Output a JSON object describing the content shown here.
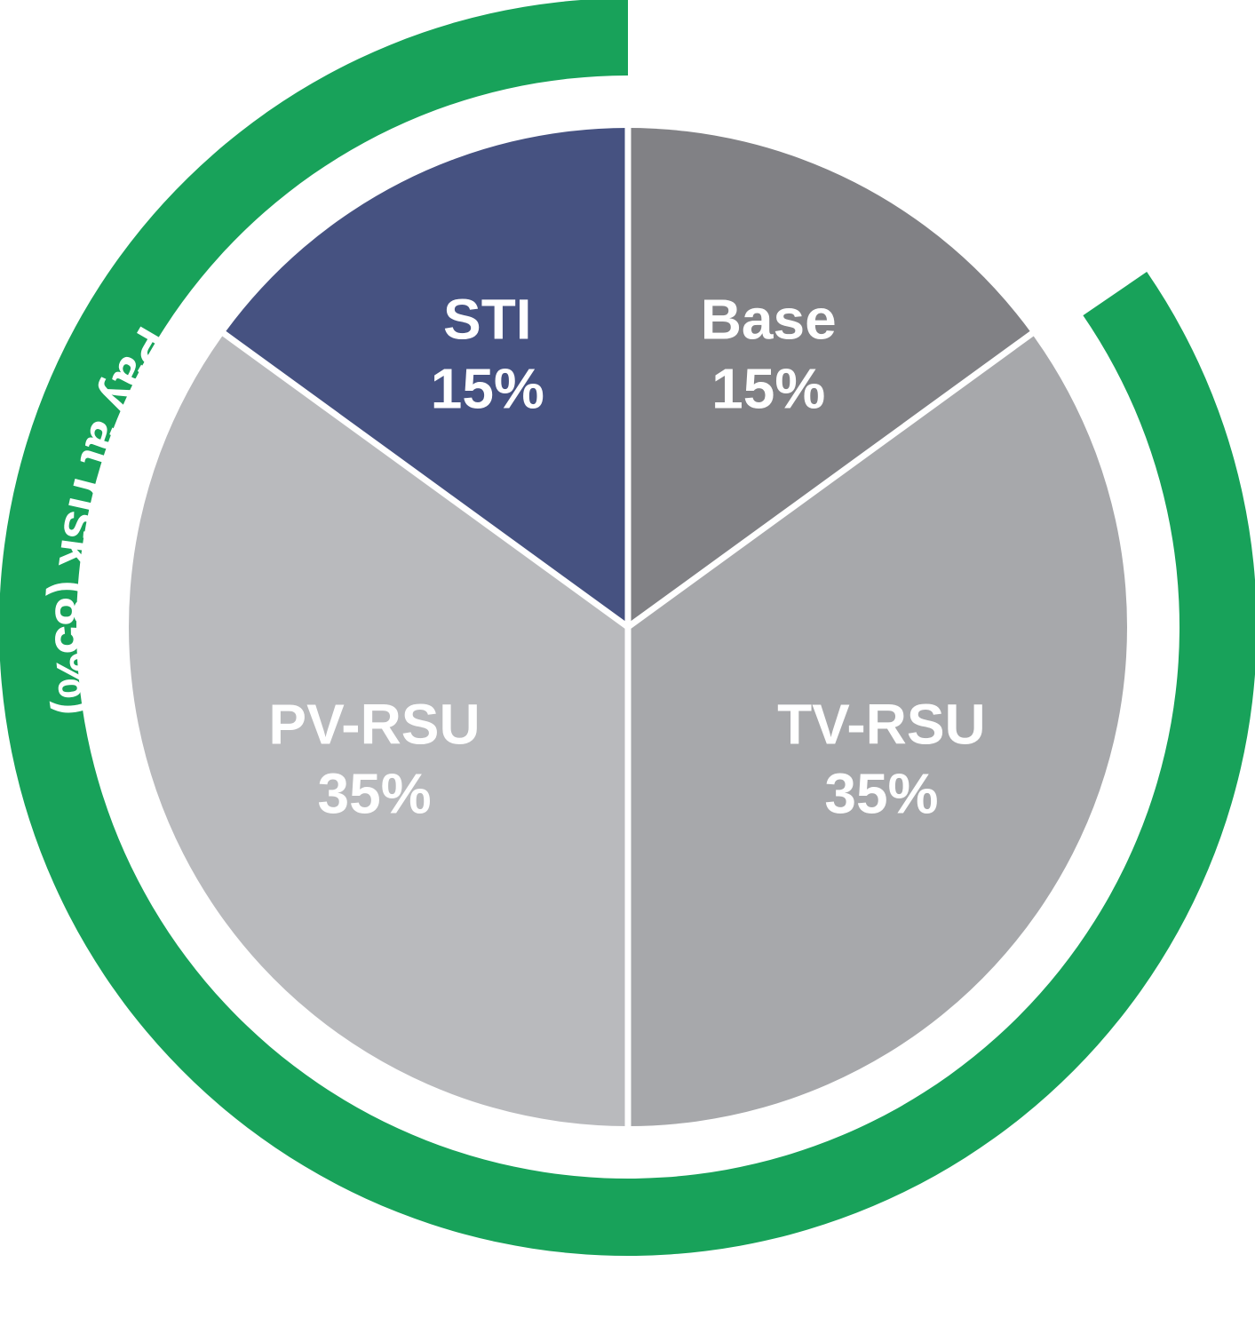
{
  "chart_data": {
    "type": "pie",
    "slices": [
      {
        "name": "Base",
        "value": 15,
        "value_label": "15%",
        "color": "#818185"
      },
      {
        "name": "TV-RSU",
        "value": 35,
        "value_label": "35%",
        "color": "#a7a8ab"
      },
      {
        "name": "PV-RSU",
        "value": 35,
        "value_label": "35%",
        "color": "#b9babd"
      },
      {
        "name": "STI",
        "value": 15,
        "value_label": "15%",
        "color": "#465281"
      }
    ],
    "ring": {
      "label": "Pay at risk (85%)",
      "value": 85,
      "color": "#18a25a",
      "covers": [
        "TV-RSU",
        "PV-RSU",
        "STI"
      ]
    },
    "label_color": "#ffffff",
    "separator_color": "#ffffff"
  }
}
